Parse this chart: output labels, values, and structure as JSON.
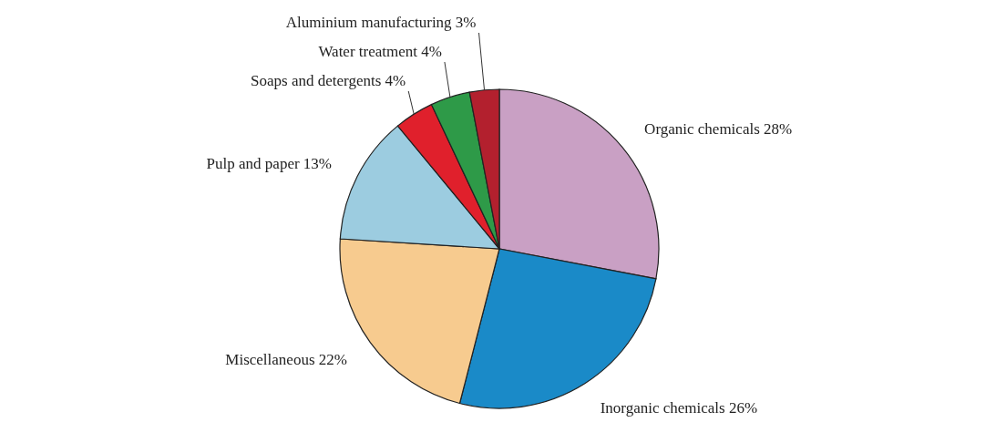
{
  "chart_data": {
    "type": "pie",
    "categories": [
      "Organic chemicals",
      "Inorganic chemicals",
      "Miscellaneous",
      "Pulp and paper",
      "Soaps and detergents",
      "Water treatment",
      "Aluminium manufacturing"
    ],
    "values": [
      28,
      26,
      22,
      13,
      4,
      4,
      3
    ],
    "value_labels": [
      "28%",
      "26%",
      "22%",
      "13%",
      "4%",
      "4%",
      "3%"
    ],
    "colors": [
      "#c9a0c4",
      "#1a8ac8",
      "#f7cb8f",
      "#9ccce0",
      "#e0202c",
      "#2e9a48",
      "#b3202e"
    ],
    "legend": false
  }
}
